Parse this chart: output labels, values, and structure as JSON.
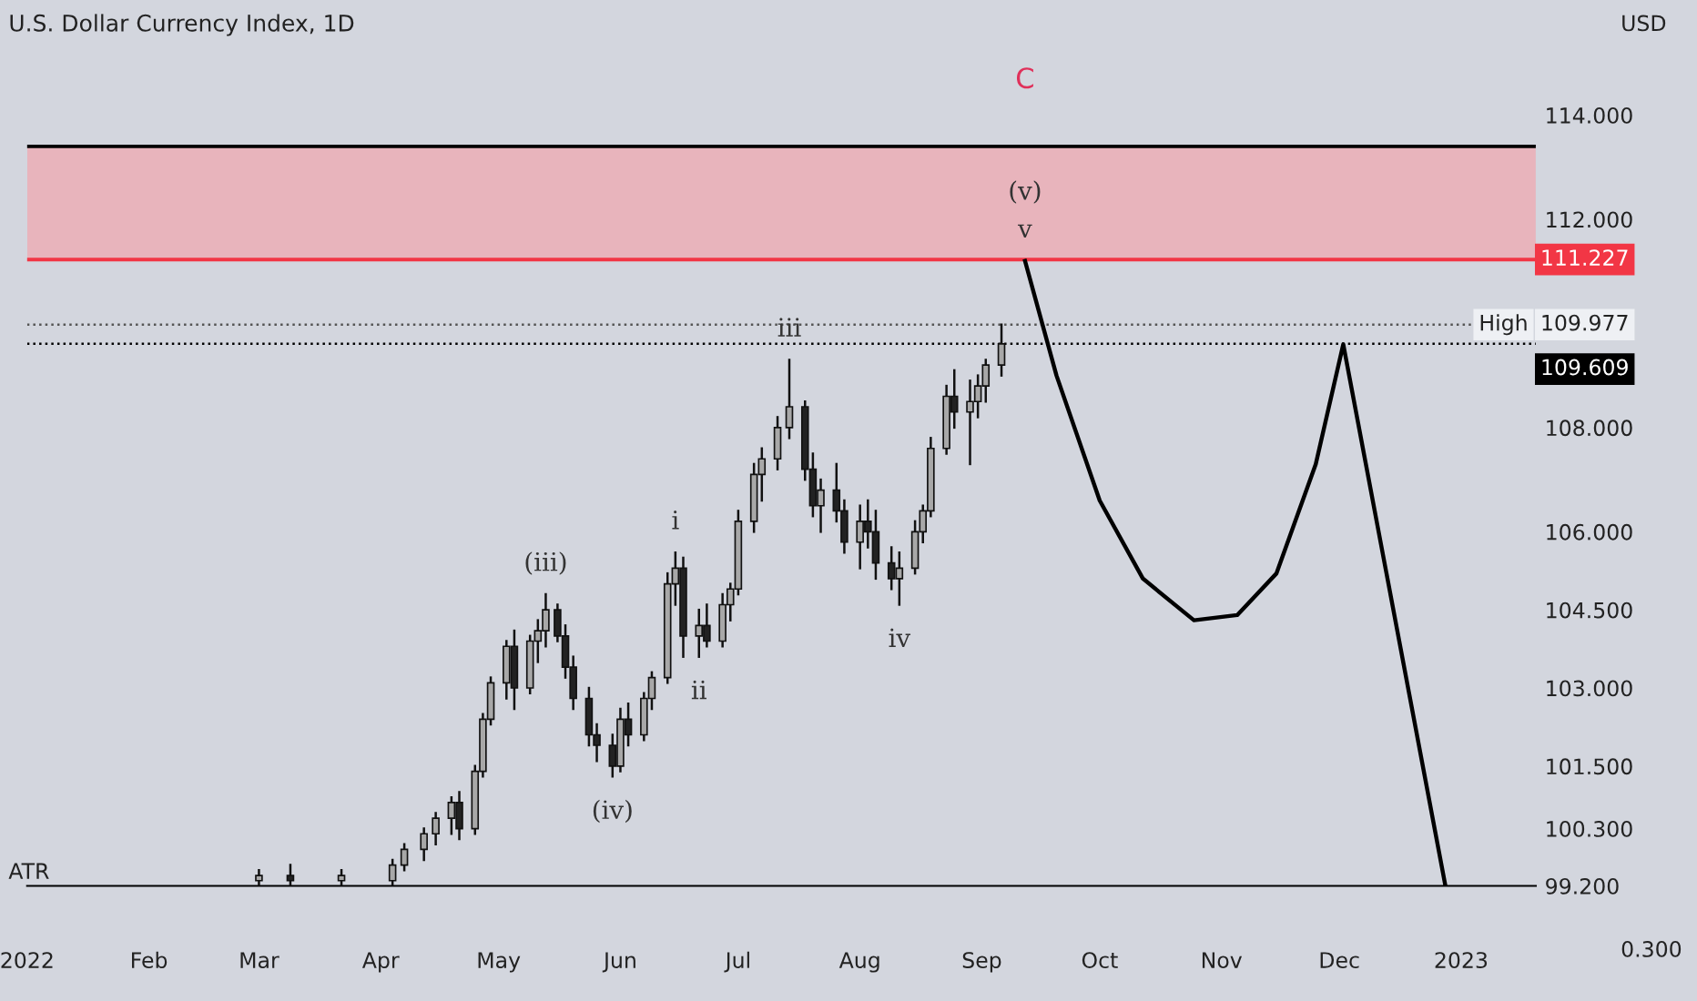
{
  "chart_data": {
    "type": "candlestick",
    "title": "U.S. Dollar Currency Index, 1D",
    "x": [
      "2022-03-01",
      "2022-03-09",
      "2022-03-22",
      "2022-04-04",
      "2022-04-07",
      "2022-04-12",
      "2022-04-15",
      "2022-04-19",
      "2022-04-21",
      "2022-04-25",
      "2022-04-27",
      "2022-04-29",
      "2022-05-03",
      "2022-05-05",
      "2022-05-09",
      "2022-05-11",
      "2022-05-13",
      "2022-05-16",
      "2022-05-18",
      "2022-05-20",
      "2022-05-24",
      "2022-05-26",
      "2022-05-30",
      "2022-06-01",
      "2022-06-03",
      "2022-06-07",
      "2022-06-09",
      "2022-06-13",
      "2022-06-15",
      "2022-06-17",
      "2022-06-21",
      "2022-06-23",
      "2022-06-27",
      "2022-06-29",
      "2022-07-01",
      "2022-07-05",
      "2022-07-07",
      "2022-07-11",
      "2022-07-14",
      "2022-07-18",
      "2022-07-20",
      "2022-07-22",
      "2022-07-26",
      "2022-07-28",
      "2022-08-01",
      "2022-08-03",
      "2022-08-05",
      "2022-08-09",
      "2022-08-11",
      "2022-08-15",
      "2022-08-17",
      "2022-08-19",
      "2022-08-23",
      "2022-08-25",
      "2022-08-29",
      "2022-08-31",
      "2022-09-02",
      "2022-09-06"
    ],
    "ohlc": [
      [
        99.3,
        99.5,
        99.2,
        99.4
      ],
      [
        99.4,
        99.6,
        99.2,
        99.3
      ],
      [
        99.3,
        99.5,
        99.2,
        99.4
      ],
      [
        99.3,
        99.7,
        99.2,
        99.6
      ],
      [
        99.6,
        100.0,
        99.5,
        99.9
      ],
      [
        99.9,
        100.3,
        99.7,
        100.2
      ],
      [
        100.2,
        100.6,
        100.0,
        100.5
      ],
      [
        100.5,
        100.9,
        100.2,
        100.8
      ],
      [
        100.8,
        101.0,
        100.1,
        100.3
      ],
      [
        100.3,
        101.5,
        100.2,
        101.4
      ],
      [
        101.4,
        102.5,
        101.3,
        102.4
      ],
      [
        102.4,
        103.2,
        102.3,
        103.1
      ],
      [
        103.1,
        103.9,
        102.8,
        103.8
      ],
      [
        103.8,
        104.1,
        102.6,
        103.0
      ],
      [
        103.0,
        104.0,
        102.9,
        103.9
      ],
      [
        103.9,
        104.3,
        103.5,
        104.1
      ],
      [
        104.1,
        104.8,
        103.8,
        104.5
      ],
      [
        104.5,
        104.6,
        103.9,
        104.0
      ],
      [
        104.0,
        104.2,
        103.2,
        103.4
      ],
      [
        103.4,
        103.6,
        102.6,
        102.8
      ],
      [
        102.8,
        103.0,
        101.9,
        102.1
      ],
      [
        102.1,
        102.3,
        101.6,
        101.9
      ],
      [
        101.9,
        102.1,
        101.3,
        101.5
      ],
      [
        101.5,
        102.6,
        101.4,
        102.4
      ],
      [
        102.4,
        102.7,
        101.9,
        102.1
      ],
      [
        102.1,
        102.9,
        102.0,
        102.8
      ],
      [
        102.8,
        103.3,
        102.6,
        103.2
      ],
      [
        103.2,
        105.2,
        103.1,
        105.0
      ],
      [
        105.0,
        105.6,
        104.6,
        105.3
      ],
      [
        105.3,
        105.5,
        103.6,
        104.0
      ],
      [
        104.0,
        104.5,
        103.6,
        104.2
      ],
      [
        104.2,
        104.6,
        103.8,
        103.9
      ],
      [
        103.9,
        104.8,
        103.8,
        104.6
      ],
      [
        104.6,
        105.0,
        104.3,
        104.9
      ],
      [
        104.9,
        106.4,
        104.8,
        106.2
      ],
      [
        106.2,
        107.3,
        106.0,
        107.1
      ],
      [
        107.1,
        107.6,
        106.6,
        107.4
      ],
      [
        107.4,
        108.2,
        107.2,
        108.0
      ],
      [
        108.0,
        109.3,
        107.8,
        108.4
      ],
      [
        108.4,
        108.5,
        107.0,
        107.2
      ],
      [
        107.2,
        107.5,
        106.3,
        106.5
      ],
      [
        106.5,
        107.0,
        106.0,
        106.8
      ],
      [
        106.8,
        107.3,
        106.2,
        106.4
      ],
      [
        106.4,
        106.6,
        105.6,
        105.8
      ],
      [
        105.8,
        106.5,
        105.3,
        106.2
      ],
      [
        106.2,
        106.6,
        105.7,
        106.0
      ],
      [
        106.0,
        106.4,
        105.1,
        105.4
      ],
      [
        105.4,
        105.7,
        104.9,
        105.1
      ],
      [
        105.1,
        105.6,
        104.6,
        105.3
      ],
      [
        105.3,
        106.2,
        105.2,
        106.0
      ],
      [
        106.0,
        106.5,
        105.8,
        106.4
      ],
      [
        106.4,
        107.8,
        106.3,
        107.6
      ],
      [
        107.6,
        108.8,
        107.5,
        108.6
      ],
      [
        108.6,
        109.1,
        108.0,
        108.3
      ],
      [
        108.3,
        108.9,
        107.3,
        108.5
      ],
      [
        108.5,
        109.0,
        108.2,
        108.8
      ],
      [
        108.8,
        109.3,
        108.5,
        109.2
      ],
      [
        109.2,
        109.977,
        109.0,
        109.609
      ]
    ],
    "series": [
      {
        "type": "line",
        "color": "#000000",
        "x": [
          "2022-09-12",
          "2022-09-20",
          "2022-10-01",
          "2022-10-12",
          "2022-10-25",
          "2022-11-05",
          "2022-11-15",
          "2022-11-25",
          "2022-12-02",
          "2022-12-28"
        ],
        "values": [
          111.2,
          109.0,
          106.6,
          105.1,
          104.3,
          104.4,
          105.2,
          107.3,
          109.6,
          99.2
        ]
      }
    ],
    "xlim": [
      "2022-01-01",
      "2023-01-20"
    ],
    "xticks": [
      {
        "value": "2022-01-01",
        "label": "2022"
      },
      {
        "value": "2022-02-01",
        "label": "Feb"
      },
      {
        "value": "2022-03-01",
        "label": "Mar"
      },
      {
        "value": "2022-04-01",
        "label": "Apr"
      },
      {
        "value": "2022-05-01",
        "label": "May"
      },
      {
        "value": "2022-06-01",
        "label": "Jun"
      },
      {
        "value": "2022-07-01",
        "label": "Jul"
      },
      {
        "value": "2022-08-01",
        "label": "Aug"
      },
      {
        "value": "2022-09-01",
        "label": "Sep"
      },
      {
        "value": "2022-10-01",
        "label": "Oct"
      },
      {
        "value": "2022-11-01",
        "label": "Nov"
      },
      {
        "value": "2022-12-01",
        "label": "Dec"
      },
      {
        "value": "2023-01-01",
        "label": "2023"
      }
    ],
    "ylim": [
      99.2,
      114
    ],
    "yticks": [
      {
        "value": 114,
        "label": "114.000"
      },
      {
        "value": 112,
        "label": "112.000"
      },
      {
        "value": 108,
        "label": "108.000"
      },
      {
        "value": 106,
        "label": "106.000"
      },
      {
        "value": 104.5,
        "label": "104.500"
      },
      {
        "value": 103,
        "label": "103.000"
      },
      {
        "value": 101.5,
        "label": "101.500"
      },
      {
        "value": 100.3,
        "label": "100.300"
      },
      {
        "value": 99.2,
        "label": "99.200"
      }
    ],
    "bands": [
      {
        "axis": "y",
        "from": 111.227,
        "to": 113.4,
        "color": "#e8b4bc"
      }
    ],
    "ref_lines": [
      {
        "axis": "y",
        "value": 113.4,
        "color": "#000000",
        "line_style": "solid"
      },
      {
        "axis": "y",
        "value": 111.227,
        "label": "111.227",
        "color": "#f23645",
        "line_style": "solid"
      },
      {
        "axis": "y",
        "value": 109.977,
        "label": "109.977",
        "color": "#555555",
        "line_style": "dotted"
      },
      {
        "axis": "y",
        "value": 109.609,
        "label": "109.609",
        "color": "#000000",
        "line_style": "dotted"
      }
    ],
    "annotations": [
      {
        "text": "v",
        "x": "2022-09-12",
        "y": 111.2
      },
      {
        "text": "(v)",
        "x": "2022-09-12",
        "y": 111.2
      },
      {
        "text": "iii",
        "x": "2022-07-14",
        "y": 109.3
      },
      {
        "text": "i",
        "x": "2022-06-15",
        "y": 105.6
      },
      {
        "text": "ii",
        "x": "2022-06-21",
        "y": 103.6
      },
      {
        "text": "iv",
        "x": "2022-08-11",
        "y": 104.6
      },
      {
        "text": "(iii)",
        "x": "2022-05-13",
        "y": 104.8
      },
      {
        "text": "(iv)",
        "x": "2022-05-30",
        "y": 101.3
      },
      "High",
      "C",
      "USD",
      "ATR",
      "0.300"
    ],
    "grid": false,
    "legend": false
  }
}
